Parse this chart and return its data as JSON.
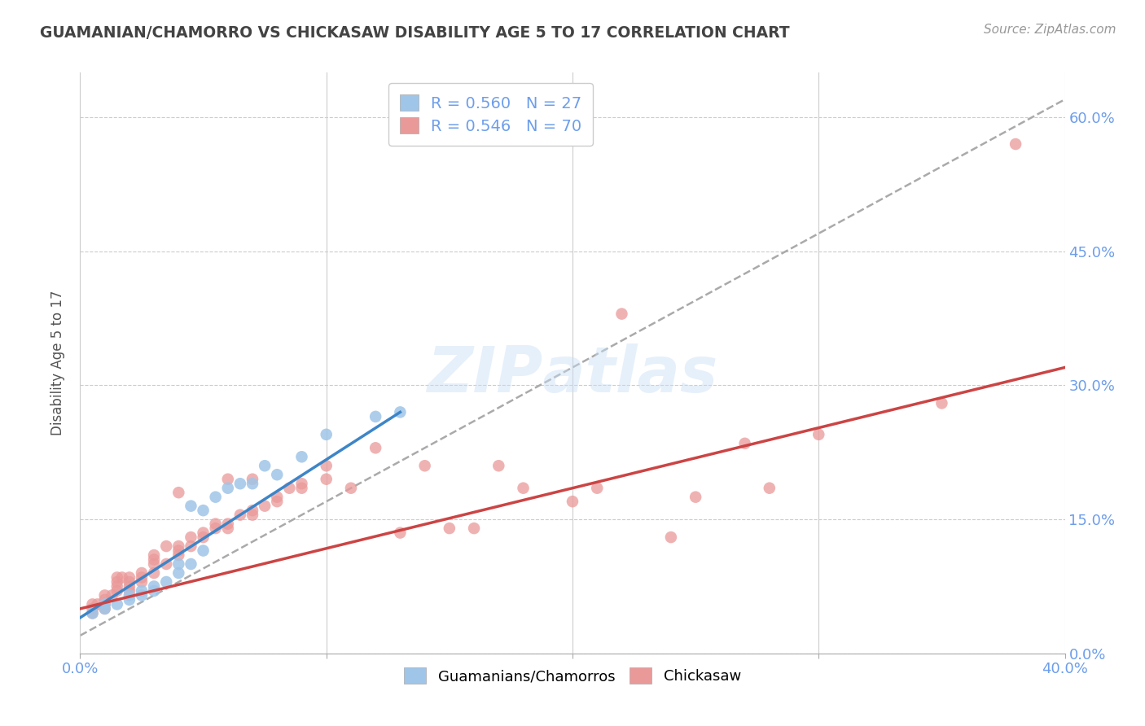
{
  "title": "GUAMANIAN/CHAMORRO VS CHICKASAW DISABILITY AGE 5 TO 17 CORRELATION CHART",
  "source": "Source: ZipAtlas.com",
  "ylabel": "Disability Age 5 to 17",
  "xlim": [
    0.0,
    0.4
  ],
  "ylim": [
    0.0,
    0.65
  ],
  "yticks_right": [
    0.0,
    0.15,
    0.3,
    0.45,
    0.6
  ],
  "ytick_labels_right": [
    "0.0%",
    "15.0%",
    "30.0%",
    "45.0%",
    "60.0%"
  ],
  "legend_r1": "R = 0.560",
  "legend_n1": "N = 27",
  "legend_r2": "R = 0.546",
  "legend_n2": "N = 70",
  "color_blue": "#9fc5e8",
  "color_pink": "#ea9999",
  "color_blue_text": "#6d9eeb",
  "color_pink_text": "#e06666",
  "color_trend_blue": "#3d85c8",
  "color_trend_pink": "#cc4444",
  "color_trend_gray": "#aaaaaa",
  "title_color": "#434343",
  "source_color": "#999999",
  "guam_points_x": [
    0.005,
    0.01,
    0.01,
    0.015,
    0.02,
    0.02,
    0.025,
    0.025,
    0.03,
    0.03,
    0.035,
    0.04,
    0.04,
    0.045,
    0.045,
    0.05,
    0.05,
    0.055,
    0.06,
    0.065,
    0.07,
    0.075,
    0.08,
    0.09,
    0.1,
    0.12,
    0.13
  ],
  "guam_points_y": [
    0.045,
    0.05,
    0.055,
    0.055,
    0.06,
    0.065,
    0.065,
    0.07,
    0.07,
    0.075,
    0.08,
    0.09,
    0.1,
    0.1,
    0.165,
    0.115,
    0.16,
    0.175,
    0.185,
    0.19,
    0.19,
    0.21,
    0.2,
    0.22,
    0.245,
    0.265,
    0.27
  ],
  "chickasaw_points_x": [
    0.005,
    0.005,
    0.005,
    0.007,
    0.01,
    0.01,
    0.01,
    0.01,
    0.013,
    0.015,
    0.015,
    0.015,
    0.015,
    0.017,
    0.02,
    0.02,
    0.02,
    0.02,
    0.025,
    0.025,
    0.025,
    0.03,
    0.03,
    0.03,
    0.03,
    0.035,
    0.035,
    0.04,
    0.04,
    0.04,
    0.04,
    0.045,
    0.045,
    0.05,
    0.05,
    0.055,
    0.055,
    0.06,
    0.06,
    0.06,
    0.065,
    0.07,
    0.07,
    0.07,
    0.075,
    0.08,
    0.08,
    0.085,
    0.09,
    0.09,
    0.1,
    0.1,
    0.11,
    0.12,
    0.13,
    0.14,
    0.15,
    0.16,
    0.17,
    0.18,
    0.2,
    0.21,
    0.22,
    0.24,
    0.25,
    0.27,
    0.28,
    0.3,
    0.35,
    0.38
  ],
  "chickasaw_points_y": [
    0.045,
    0.05,
    0.055,
    0.055,
    0.05,
    0.055,
    0.06,
    0.065,
    0.065,
    0.07,
    0.075,
    0.08,
    0.085,
    0.085,
    0.07,
    0.075,
    0.08,
    0.085,
    0.08,
    0.085,
    0.09,
    0.09,
    0.1,
    0.105,
    0.11,
    0.1,
    0.12,
    0.11,
    0.115,
    0.12,
    0.18,
    0.12,
    0.13,
    0.13,
    0.135,
    0.14,
    0.145,
    0.14,
    0.145,
    0.195,
    0.155,
    0.155,
    0.16,
    0.195,
    0.165,
    0.17,
    0.175,
    0.185,
    0.185,
    0.19,
    0.195,
    0.21,
    0.185,
    0.23,
    0.135,
    0.21,
    0.14,
    0.14,
    0.21,
    0.185,
    0.17,
    0.185,
    0.38,
    0.13,
    0.175,
    0.235,
    0.185,
    0.245,
    0.28,
    0.57
  ],
  "blue_trend_x": [
    0.0,
    0.13
  ],
  "blue_trend_y": [
    0.04,
    0.27
  ],
  "pink_trend_x": [
    0.0,
    0.4
  ],
  "pink_trend_y": [
    0.05,
    0.32
  ],
  "gray_trend_x": [
    0.0,
    0.4
  ],
  "gray_trend_y": [
    0.02,
    0.62
  ]
}
